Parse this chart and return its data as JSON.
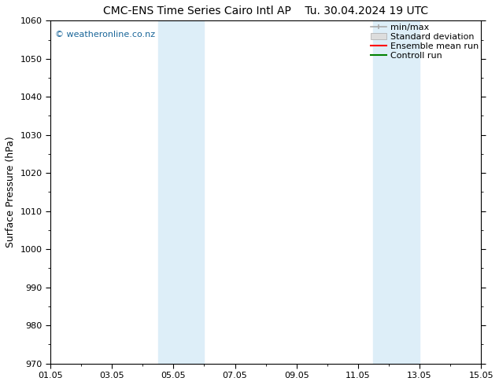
{
  "title_left": "CMC-ENS Time Series Cairo Intl AP",
  "title_right": "Tu. 30.04.2024 19 UTC",
  "ylabel": "Surface Pressure (hPa)",
  "ylim": [
    970,
    1060
  ],
  "yticks": [
    970,
    980,
    990,
    1000,
    1010,
    1020,
    1030,
    1040,
    1050,
    1060
  ],
  "xlim_start": 0,
  "xlim_end": 14,
  "xtick_positions": [
    0,
    2,
    4,
    6,
    8,
    10,
    12,
    14
  ],
  "xtick_labels": [
    "01.05",
    "03.05",
    "05.05",
    "07.05",
    "09.05",
    "11.05",
    "13.05",
    "15.05"
  ],
  "shade_bands": [
    {
      "xmin": 3.5,
      "xmax": 5.0
    },
    {
      "xmin": 10.5,
      "xmax": 12.0
    }
  ],
  "shade_color": "#ddeef8",
  "watermark": "© weatheronline.co.nz",
  "watermark_color": "#1a6699",
  "background_color": "#ffffff",
  "plot_bg_color": "#ffffff",
  "legend_items": [
    {
      "label": "min/max",
      "color": "#aaaaaa",
      "type": "minmax"
    },
    {
      "label": "Standard deviation",
      "color": "#cccccc",
      "type": "stddev"
    },
    {
      "label": "Ensemble mean run",
      "color": "#ff0000",
      "type": "line"
    },
    {
      "label": "Controll run",
      "color": "#008000",
      "type": "line"
    }
  ],
  "title_fontsize": 10,
  "axis_label_fontsize": 9,
  "tick_fontsize": 8,
  "legend_fontsize": 8,
  "figsize": [
    6.34,
    4.9
  ],
  "dpi": 100
}
